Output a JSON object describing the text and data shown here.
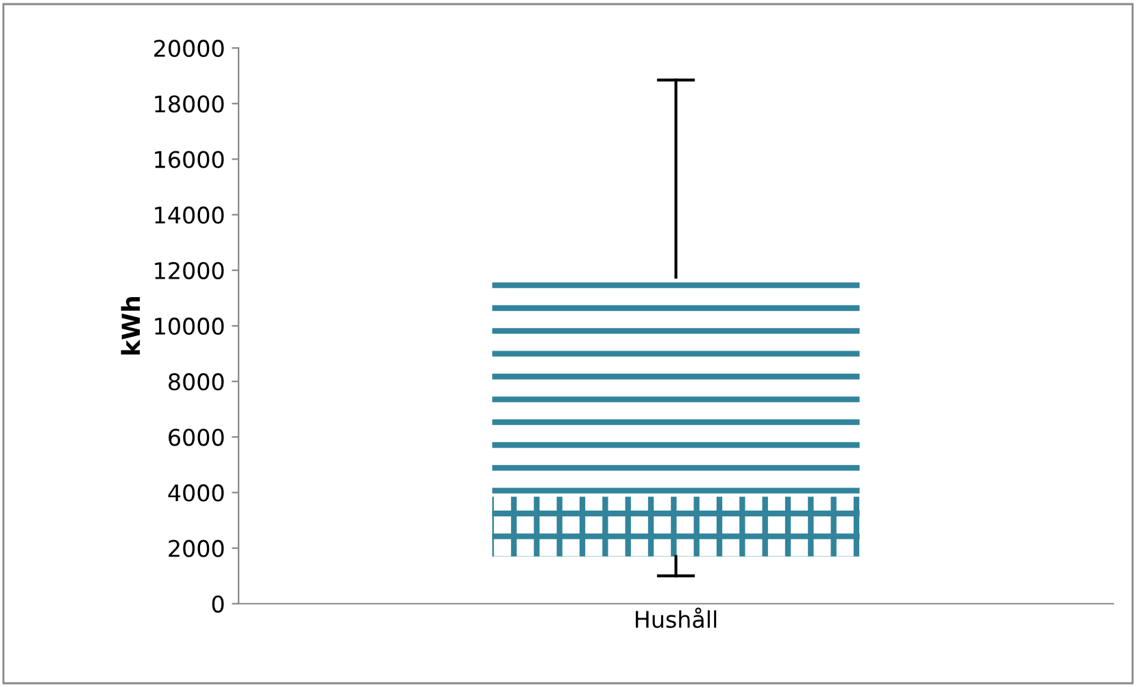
{
  "chart_data": {
    "type": "box",
    "ylabel": "kWh",
    "categories": [
      "Hushåll"
    ],
    "boxes": [
      {
        "low": 1000,
        "q1": 1700,
        "median": 3850,
        "q3": 11750,
        "high": 18850
      }
    ],
    "color": "#31849b",
    "ylim": [
      0,
      20000
    ],
    "yticks": [
      0,
      2000,
      4000,
      6000,
      8000,
      10000,
      12000,
      14000,
      16000,
      18000,
      20000
    ],
    "grid": false,
    "legend": false
  }
}
